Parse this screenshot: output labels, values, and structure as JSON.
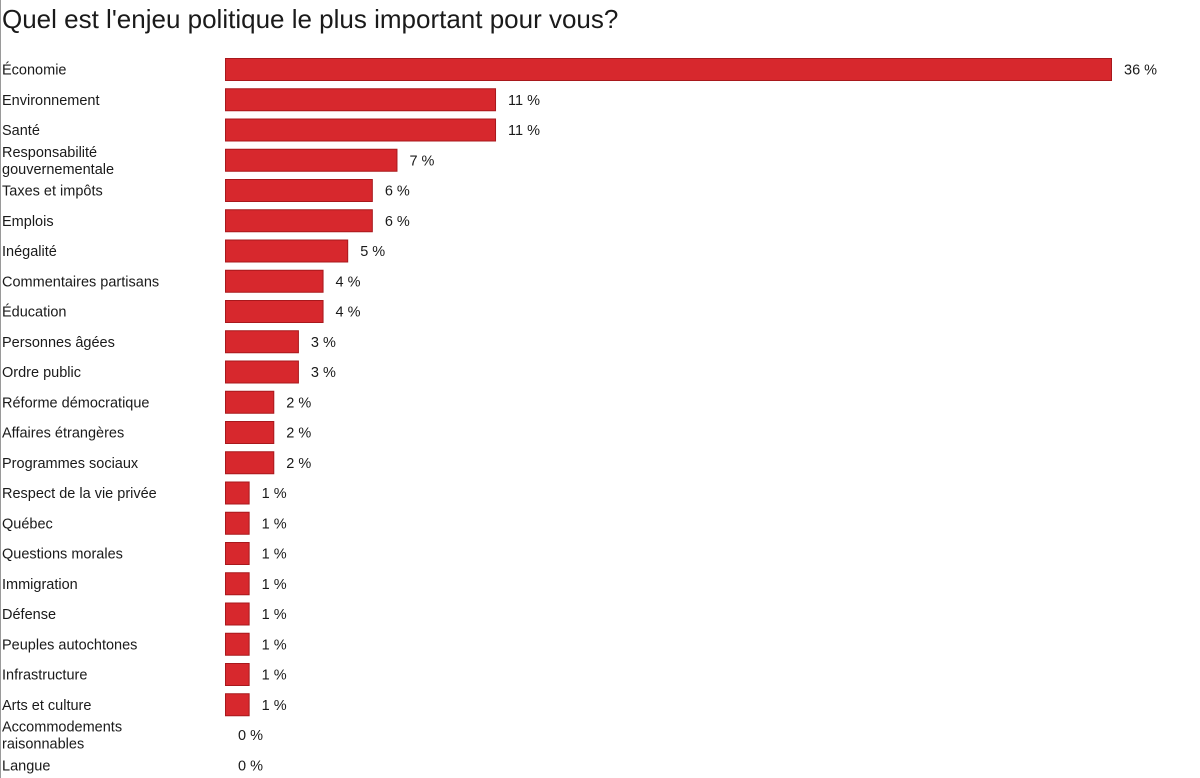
{
  "chart_data": {
    "type": "bar",
    "orientation": "horizontal",
    "title": "Quel est l'enjeu politique le plus important pour vous?",
    "xlabel": "",
    "ylabel": "",
    "value_suffix": " %",
    "xlim": [
      0,
      36
    ],
    "grid": false,
    "legend": "none",
    "bar_color": "#d7282d",
    "bar_stroke": "#a8181c",
    "categories": [
      [
        "Économie"
      ],
      [
        "Environnement"
      ],
      [
        "Santé"
      ],
      [
        "Responsabilité",
        "gouvernementale"
      ],
      [
        "Taxes et impôts"
      ],
      [
        "Emplois"
      ],
      [
        "Inégalité"
      ],
      [
        "Commentaires partisans"
      ],
      [
        "Éducation"
      ],
      [
        "Personnes âgées"
      ],
      [
        "Ordre public"
      ],
      [
        "Réforme démocratique"
      ],
      [
        "Affaires étrangères"
      ],
      [
        "Programmes sociaux"
      ],
      [
        "Respect de la vie privée"
      ],
      [
        "Québec"
      ],
      [
        "Questions morales"
      ],
      [
        "Immigration"
      ],
      [
        "Défense"
      ],
      [
        "Peuples autochtones"
      ],
      [
        "Infrastructure"
      ],
      [
        "Arts et culture"
      ],
      [
        "Accommodements",
        "raisonnables"
      ],
      [
        "Langue"
      ]
    ],
    "values": [
      36,
      11,
      11,
      7,
      6,
      6,
      5,
      4,
      4,
      3,
      3,
      2,
      2,
      2,
      1,
      1,
      1,
      1,
      1,
      1,
      1,
      1,
      0,
      0
    ]
  }
}
